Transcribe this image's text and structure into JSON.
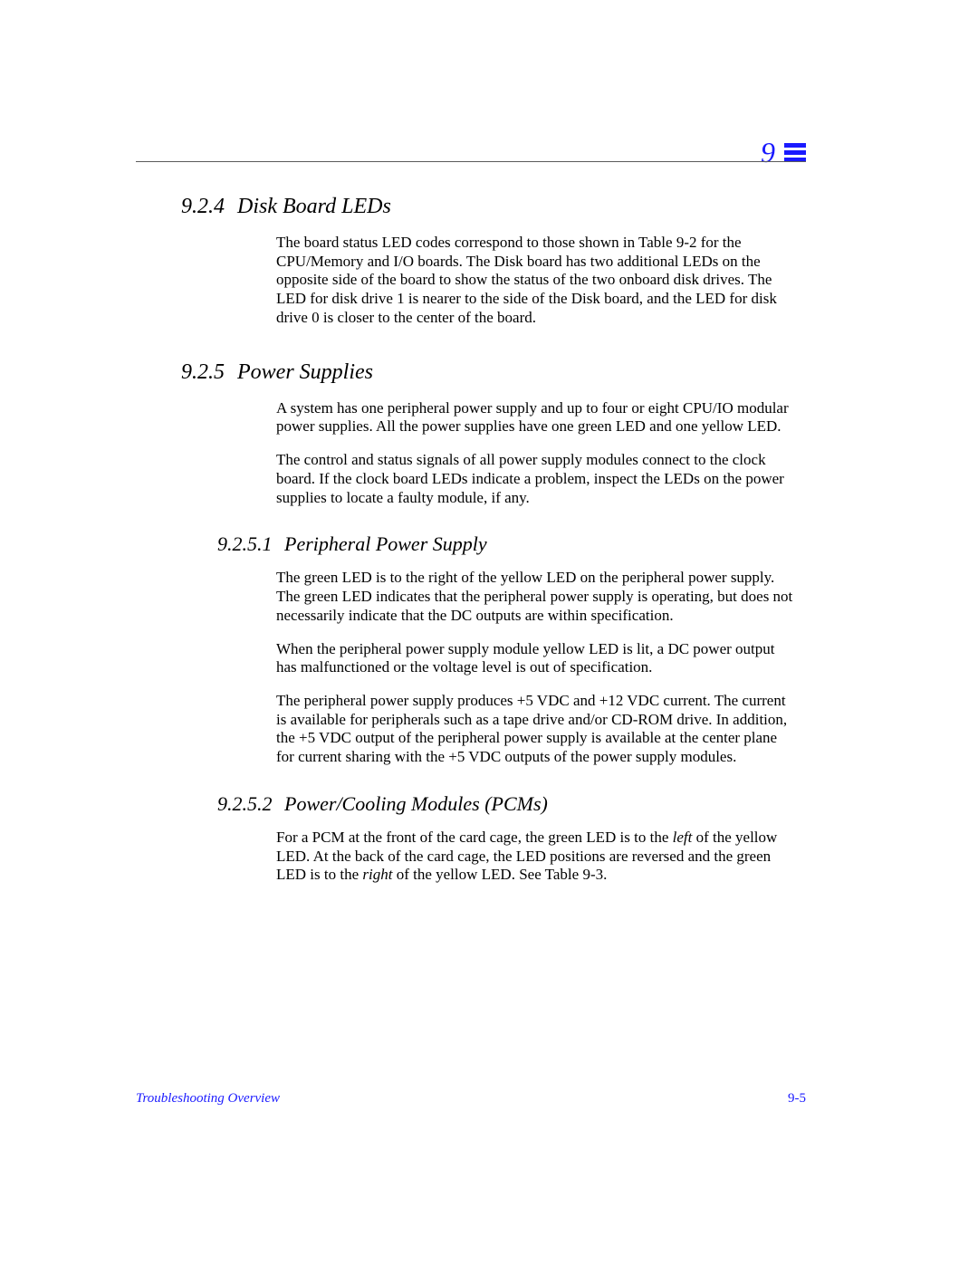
{
  "chapter": {
    "number": "9",
    "number_color": "#1a1aff",
    "icon_color": "#1a1aff"
  },
  "sections": [
    {
      "number": "9.2.4",
      "title": "Disk Board LEDs",
      "paragraphs": [
        "The board status LED codes correspond to those shown in Table 9-2 for the CPU/Memory and I/O boards. The Disk board has two additional LEDs on the opposite side of the board to show the status of the two onboard disk drives. The LED for disk drive 1 is nearer to the side of the Disk board, and the LED for disk drive 0 is closer to the center of the board."
      ],
      "subsections": []
    },
    {
      "number": "9.2.5",
      "title": "Power Supplies",
      "paragraphs": [
        "A system has one peripheral power supply and up to four or eight CPU/IO modular power supplies. All the power supplies have one green LED and one yellow LED.",
        "The control and status signals of all power supply modules connect to the clock board. If the clock board LEDs indicate a problem, inspect the LEDs on the power supplies to locate a faulty module, if any."
      ],
      "subsections": [
        {
          "number": "9.2.5.1",
          "title": "Peripheral Power Supply",
          "paragraphs": [
            "The green LED is to the right of the yellow LED on the peripheral power supply. The green LED indicates that the peripheral power supply is operating, but does not necessarily indicate that the DC outputs are within specification.",
            "When the peripheral power supply module yellow LED is lit, a DC power output has malfunctioned or the voltage level is out of specification.",
            "The peripheral power supply produces +5 VDC and +12 VDC current. The current is available for peripherals such as a tape drive and/or CD-ROM drive. In addition, the +5 VDC output of the peripheral power supply is available at the center plane for current sharing with the +5 VDC outputs of the power supply modules."
          ]
        },
        {
          "number": "9.2.5.2",
          "title": "Power/Cooling Modules (PCMs)",
          "paragraphs_html": [
            "For a PCM at the front of the card cage, the green LED is to the <em class='it'>left</em> of the yellow LED. At the back of the card cage, the LED positions are reversed and the green LED is to the <em class='it'>right</em> of the yellow LED. See Table 9-3."
          ]
        }
      ]
    }
  ],
  "footer": {
    "left": "Troubleshooting Overview",
    "right": "9-5",
    "color": "#1a1aff"
  }
}
